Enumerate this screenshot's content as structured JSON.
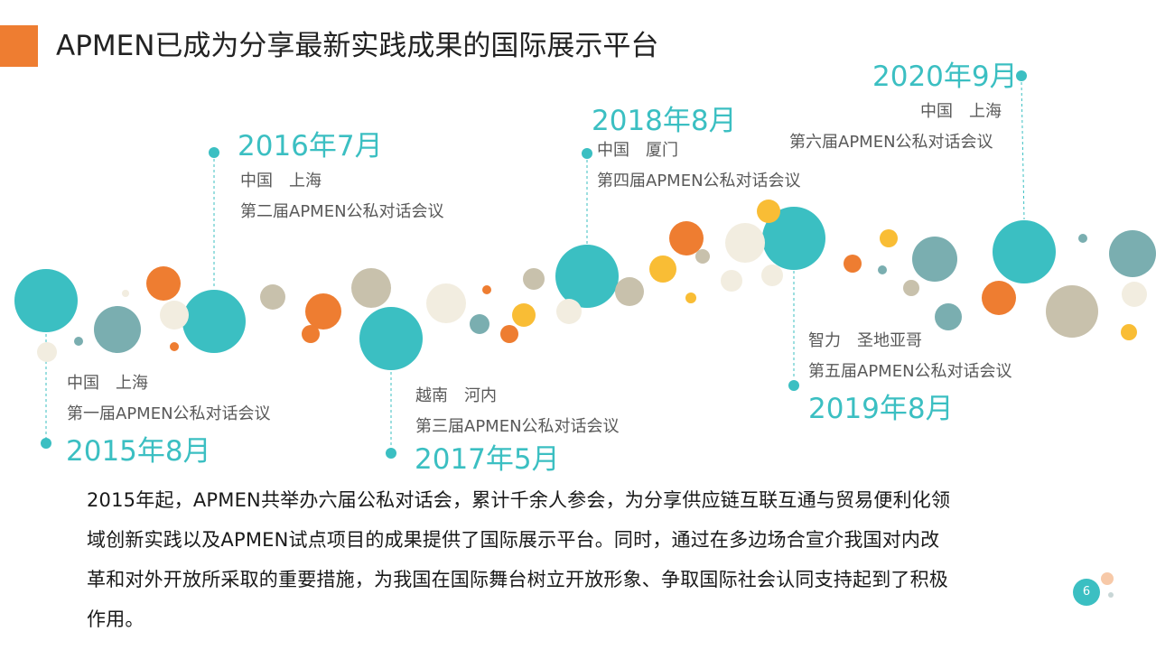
{
  "slide": {
    "title": "APMEN已成为分享最新实践成果的国际展示平台",
    "page_number": "6"
  },
  "colors": {
    "teal": "#3bbfc2",
    "orange": "#ee7d31",
    "gray_teal": "#7aaeb0",
    "yellow": "#f9bd35",
    "beige": "#c8c1ac",
    "cream": "#f2ede0"
  },
  "events": [
    {
      "date": "2015年8月",
      "location": "中国　上海",
      "event": "第一届APMEN公私对话会议"
    },
    {
      "date": "2016年7月",
      "location": "中国　上海",
      "event": "第二届APMEN公私对话会议"
    },
    {
      "date": "2017年5月",
      "location": "越南　河内",
      "event": "第三届APMEN公私对话会议"
    },
    {
      "date": "2018年8月",
      "location": "中国　厦门",
      "event": "第四届APMEN公私对话会议"
    },
    {
      "date": "2019年8月",
      "location": "智力　圣地亚哥",
      "event": "第五届APMEN公私对话会议"
    },
    {
      "date": "2020年9月",
      "location": "中国　上海",
      "event": "第六届APMEN公私对话会议"
    }
  ],
  "summary": {
    "lines": [
      "2015年起，APMEN共举办六届公私对话会，累计千余人参会，为分享供应链互联互通与贸易便利化领",
      "域创新实践以及APMEN试点项目的成果提供了国际展示平台。同时，通过在多边场合宣介我国对内改",
      "革和对外开放所采取的重要措施，为我国在国际舞台树立开放形象、争取国际社会认同支持起到了积极",
      "作用。"
    ]
  }
}
